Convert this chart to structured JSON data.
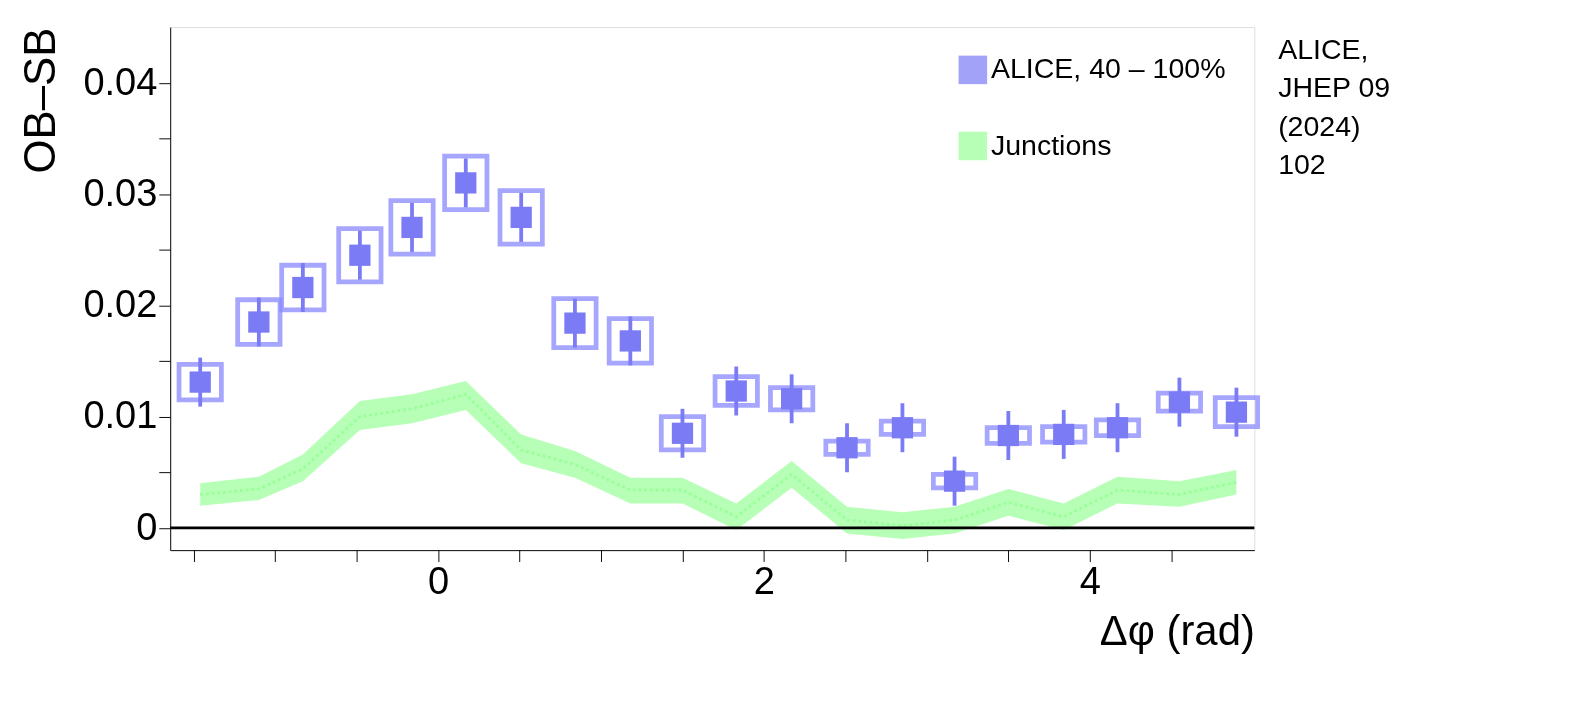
{
  "chart_data": {
    "type": "scatter",
    "ylabel": "OB–SB",
    "xlabel": "Δφ (rad)",
    "xlim": [
      -1.644,
      5.01
    ],
    "ylim": [
      -0.002,
      0.045
    ],
    "xticks": [
      {
        "value": -1.5,
        "label": null
      },
      {
        "value": -1,
        "label": null
      },
      {
        "value": -0.5,
        "label": null
      },
      0,
      {
        "value": 0.5,
        "label": null
      },
      {
        "value": 1,
        "label": null
      },
      {
        "value": 1.5,
        "label": null
      },
      2,
      {
        "value": 2.5,
        "label": null
      },
      {
        "value": 3,
        "label": null
      },
      {
        "value": 3.5,
        "label": null
      },
      4,
      {
        "value": 4.5,
        "label": null
      }
    ],
    "yticks": [
      0,
      {
        "value": 0.005,
        "label": null
      },
      0.01,
      {
        "value": 0.015,
        "label": null
      },
      0.02,
      {
        "value": 0.025,
        "label": null
      },
      0.03,
      {
        "value": 0.035,
        "label": null
      },
      0.04
    ],
    "grid": false,
    "legend": "top right",
    "ref_lines": [
      {
        "axis": "y",
        "value": 0,
        "color": "#000000"
      }
    ],
    "annotations": [
      "ALICE,\nJHEP 09\n(2024)\n102"
    ],
    "series": [
      {
        "name": "Junctions",
        "type": "line",
        "line_style": "dotted",
        "color": "#99ff99",
        "x": [
          -1.46,
          -1.1,
          -0.83,
          -0.48,
          -0.16,
          0.17,
          0.51,
          0.84,
          1.18,
          1.5,
          1.83,
          2.17,
          2.51,
          2.85,
          3.17,
          3.5,
          3.84,
          4.17,
          4.55,
          4.9
        ],
        "values": [
          0.003,
          0.0035,
          0.0053,
          0.01,
          0.0107,
          0.012,
          0.007,
          0.0057,
          0.0034,
          0.0034,
          0.001,
          0.0048,
          0.0007,
          0.0002,
          0.0007,
          0.0023,
          0.001,
          0.0034,
          0.003,
          0.0041
        ],
        "lower": [
          0.002,
          0.0025,
          0.0042,
          0.0088,
          0.0094,
          0.0106,
          0.0058,
          0.0045,
          0.0022,
          0.0022,
          -0.0002,
          0.0036,
          -0.0005,
          -0.001,
          -0.0005,
          0.0011,
          -0.0002,
          0.0022,
          0.0019,
          0.003
        ],
        "upper": [
          0.004,
          0.0046,
          0.0066,
          0.0114,
          0.012,
          0.0132,
          0.0084,
          0.0069,
          0.0045,
          0.0045,
          0.0022,
          0.006,
          0.0019,
          0.0014,
          0.0019,
          0.0035,
          0.0022,
          0.0046,
          0.0042,
          0.0052
        ]
      },
      {
        "type": "bar",
        "color": "#8888ff",
        "x": [
          -1.46,
          -1.1,
          -0.83,
          -0.48,
          -0.16,
          0.17,
          0.51,
          0.84,
          1.18,
          1.5,
          1.83,
          2.17,
          2.51,
          2.85,
          3.17,
          3.5,
          3.84,
          4.17,
          4.55,
          4.9
        ],
        "base": [
          0.0115,
          0.0165,
          0.0196,
          0.0221,
          0.0246,
          0.0286,
          0.0255,
          0.0162,
          0.0148,
          0.007,
          0.011,
          0.0106,
          0.0066,
          0.0084,
          0.0036,
          0.0076,
          0.0077,
          0.0083,
          0.0105,
          0.0091
        ],
        "values": [
          0.0032,
          0.004,
          0.004,
          0.0048,
          0.0048,
          0.0048,
          0.0048,
          0.0044,
          0.004,
          0.003,
          0.0026,
          0.002,
          0.0012,
          0.0012,
          0.0012,
          0.0014,
          0.0014,
          0.0014,
          0.0016,
          0.0026
        ]
      },
      {
        "name": "ALICE, 40 – 100%",
        "marker": "square",
        "color": "#7b7bf5",
        "x": [
          -1.46,
          -1.1,
          -0.83,
          -0.48,
          -0.16,
          0.17,
          0.51,
          0.84,
          1.18,
          1.5,
          1.83,
          2.17,
          2.51,
          2.85,
          3.17,
          3.5,
          3.84,
          4.17,
          4.55,
          4.9
        ],
        "values": [
          0.0131,
          0.0185,
          0.0216,
          0.0245,
          0.027,
          0.031,
          0.0279,
          0.0184,
          0.0168,
          0.0085,
          0.0123,
          0.0116,
          0.0072,
          0.009,
          0.0042,
          0.0083,
          0.0084,
          0.009,
          0.0113,
          0.0104
        ],
        "errors": [
          0.0022,
          0.0022,
          0.0022,
          0.0022,
          0.0022,
          0.0022,
          0.0022,
          0.0022,
          0.0022,
          0.0022,
          0.0022,
          0.0022,
          0.0022,
          0.0022,
          0.0022,
          0.0022,
          0.0022,
          0.0022,
          0.0022,
          0.0022
        ]
      }
    ]
  }
}
